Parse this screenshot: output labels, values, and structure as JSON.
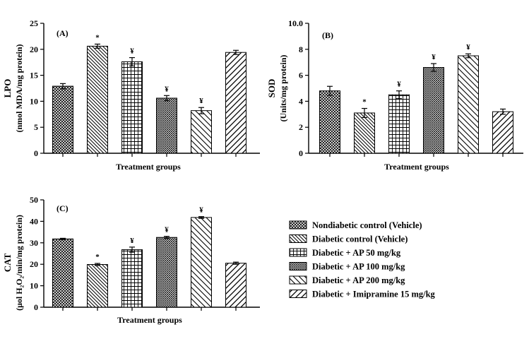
{
  "groups": [
    {
      "name": "Nondiabetic control  (Vehicle)",
      "pattern": "crosshatch"
    },
    {
      "name": "Diabetic control  (Vehicle)",
      "pattern": "backslash"
    },
    {
      "name": "Diabetic + AP 50 mg/kg",
      "pattern": "grid"
    },
    {
      "name": "Diabetic + AP 100 mg/kg",
      "pattern": "dense-diag"
    },
    {
      "name": "Diabetic + AP 200 mg/kg",
      "pattern": "backslash-wide"
    },
    {
      "name": "Diabetic + Imipramine 15 mg/kg",
      "pattern": "slash"
    }
  ],
  "chart_data": [
    {
      "type": "bar",
      "panel": "(A)",
      "ylabel_line1": "LPO",
      "ylabel_line2": "(nmol MDA/mg protein)",
      "xlabel": "Treatment groups",
      "ylim": [
        0,
        25
      ],
      "yticks": [
        "0",
        "5",
        "10",
        "15",
        "20",
        "25"
      ],
      "values": [
        12.9,
        20.6,
        17.6,
        10.6,
        8.2,
        19.4
      ],
      "errors": [
        0.5,
        0.4,
        0.8,
        0.5,
        0.6,
        0.4
      ],
      "markers": [
        "",
        "*",
        "¥",
        "¥",
        "¥",
        ""
      ]
    },
    {
      "type": "bar",
      "panel": "(B)",
      "ylabel_line1": "SOD",
      "ylabel_line2": "(Units/mg protein)",
      "xlabel": "Treatment groups",
      "ylim": [
        0,
        10
      ],
      "yticks": [
        "0",
        "2",
        "4",
        "6",
        "8",
        "10.0"
      ],
      "values": [
        4.8,
        3.1,
        4.5,
        6.6,
        7.5,
        3.2
      ],
      "errors": [
        0.35,
        0.35,
        0.3,
        0.3,
        0.15,
        0.2
      ],
      "markers": [
        "",
        "*",
        "¥",
        "¥",
        "¥",
        ""
      ]
    },
    {
      "type": "bar",
      "panel": "(C)",
      "ylabel_line1": "CAT",
      "ylabel_line2": "(μol H₂O₂/min/mg protein)",
      "xlabel": "Treatment groups",
      "ylim": [
        0,
        50
      ],
      "yticks": [
        "0",
        "10",
        "20",
        "30",
        "40",
        "50"
      ],
      "values": [
        31.8,
        19.9,
        26.8,
        32.5,
        41.8,
        20.5
      ],
      "errors": [
        0.3,
        0.5,
        1.2,
        0.5,
        0.4,
        0.5
      ],
      "markers": [
        "",
        "*",
        "¥",
        "¥",
        "¥",
        ""
      ]
    }
  ]
}
